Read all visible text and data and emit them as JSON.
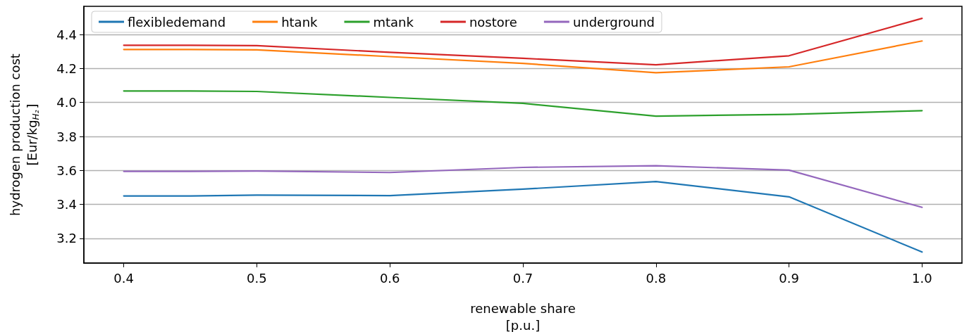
{
  "chart_data": {
    "type": "line",
    "xlabel": "renewable share\n[p.u.]",
    "ylabel": "hydrogen production cost\n[Eur/kg$_{H₂}$]",
    "x": [
      0.4,
      0.45,
      0.5,
      0.6,
      0.7,
      0.8,
      0.9,
      1.0
    ],
    "series": [
      {
        "name": "flexibledemand",
        "color": "#1f77b4",
        "values": [
          3.45,
          3.45,
          3.455,
          3.452,
          3.49,
          3.535,
          3.445,
          3.12
        ]
      },
      {
        "name": "htank",
        "color": "#ff7f0e",
        "values": [
          4.312,
          4.312,
          4.31,
          4.27,
          4.23,
          4.175,
          4.21,
          4.362
        ]
      },
      {
        "name": "mtank",
        "color": "#2ca02c",
        "values": [
          4.068,
          4.068,
          4.065,
          4.03,
          3.995,
          3.92,
          3.93,
          3.952
        ]
      },
      {
        "name": "nostore",
        "color": "#d62728",
        "values": [
          4.337,
          4.337,
          4.335,
          4.295,
          4.26,
          4.222,
          4.275,
          4.495
        ]
      },
      {
        "name": "underground",
        "color": "#9467bd",
        "values": [
          3.595,
          3.595,
          3.597,
          3.588,
          3.618,
          3.628,
          3.602,
          3.383
        ]
      }
    ],
    "xlim": [
      0.37,
      1.03
    ],
    "xticks": [
      0.4,
      0.5,
      0.6,
      0.7,
      0.8,
      0.9,
      {
        "value": 1,
        "label": "1.0"
      }
    ],
    "ylim": [
      3.055,
      4.566
    ],
    "yticks": [
      3.2,
      3.4,
      3.6,
      3.8,
      {
        "value": 4,
        "label": "4.0"
      },
      4.2,
      4.4
    ],
    "grid": "y",
    "legend": "top left",
    "marker": "none",
    "line_style": "solid"
  }
}
